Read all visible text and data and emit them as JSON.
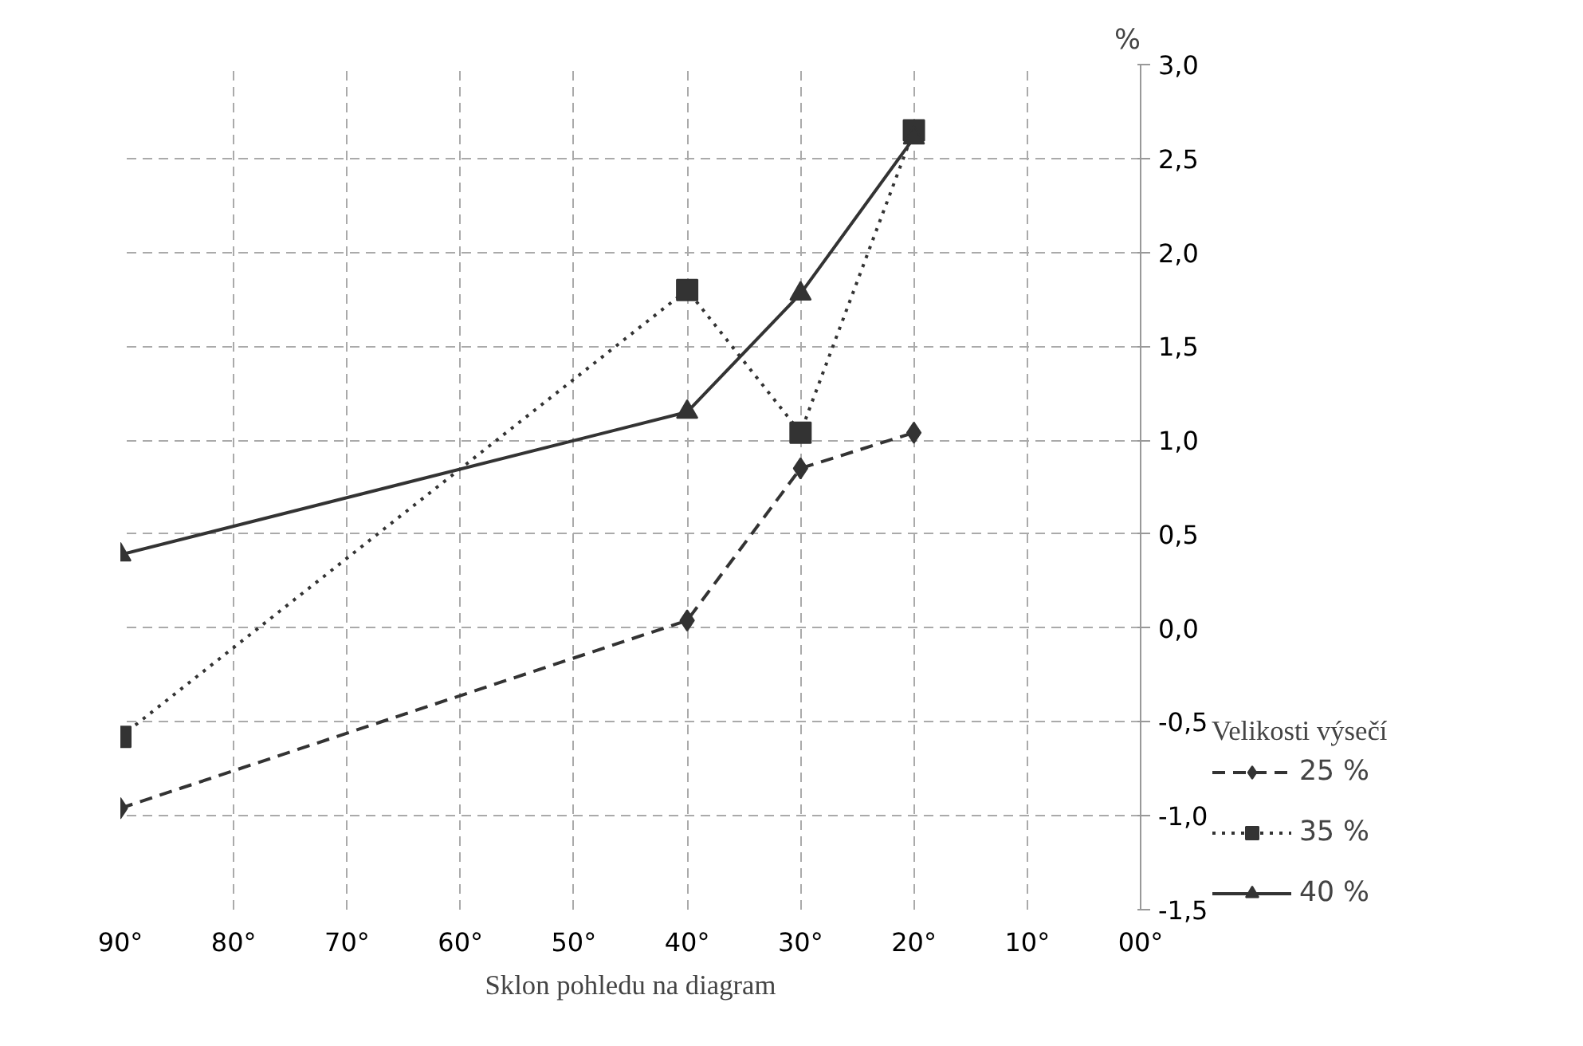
{
  "chart_data": {
    "type": "line",
    "xlabel": "Sklon pohledu na diagram",
    "ylabel": "%",
    "legend_title": "Velikosti výsečí",
    "x": [
      90,
      40,
      30,
      20
    ],
    "series": [
      {
        "name": "25 %",
        "color": "#333333",
        "values": [
          -0.96,
          0.04,
          0.85,
          1.04
        ],
        "marker": "diamond",
        "line_style": "dashed"
      },
      {
        "name": "35 %",
        "color": "#333333",
        "values": [
          -0.58,
          1.8,
          1.04,
          2.65
        ],
        "marker": "square",
        "line_style": "dotted"
      },
      {
        "name": "40 %",
        "color": "#333333",
        "values": [
          0.39,
          1.15,
          1.78,
          2.61
        ],
        "marker": "triangle",
        "line_style": "solid"
      }
    ],
    "xlim": [
      90,
      0
    ],
    "xticks": [
      {
        "value": 90,
        "label": "90°"
      },
      {
        "value": 80,
        "label": "80°"
      },
      {
        "value": 70,
        "label": "70°"
      },
      {
        "value": 60,
        "label": "60°"
      },
      {
        "value": 50,
        "label": "50°"
      },
      {
        "value": 40,
        "label": "40°"
      },
      {
        "value": 30,
        "label": "30°"
      },
      {
        "value": 20,
        "label": "20°"
      },
      {
        "value": 10,
        "label": "10°"
      },
      {
        "value": 0,
        "label": "00°"
      }
    ],
    "ylim": [
      -1.5,
      3
    ],
    "yticks": [
      {
        "value": -1.5,
        "label": "-1,5"
      },
      {
        "value": -1,
        "label": "-1,0"
      },
      {
        "value": -0.5,
        "label": "-0,5"
      },
      {
        "value": 0,
        "label": "0,0"
      },
      {
        "value": 0.5,
        "label": "0,5"
      },
      {
        "value": 1,
        "label": "1,0"
      },
      {
        "value": 1.5,
        "label": "1,5"
      },
      {
        "value": 2,
        "label": "2,0"
      },
      {
        "value": 2.5,
        "label": "2,5"
      },
      {
        "value": 3,
        "label": "3,0"
      }
    ],
    "grid": true,
    "legend": "right"
  }
}
